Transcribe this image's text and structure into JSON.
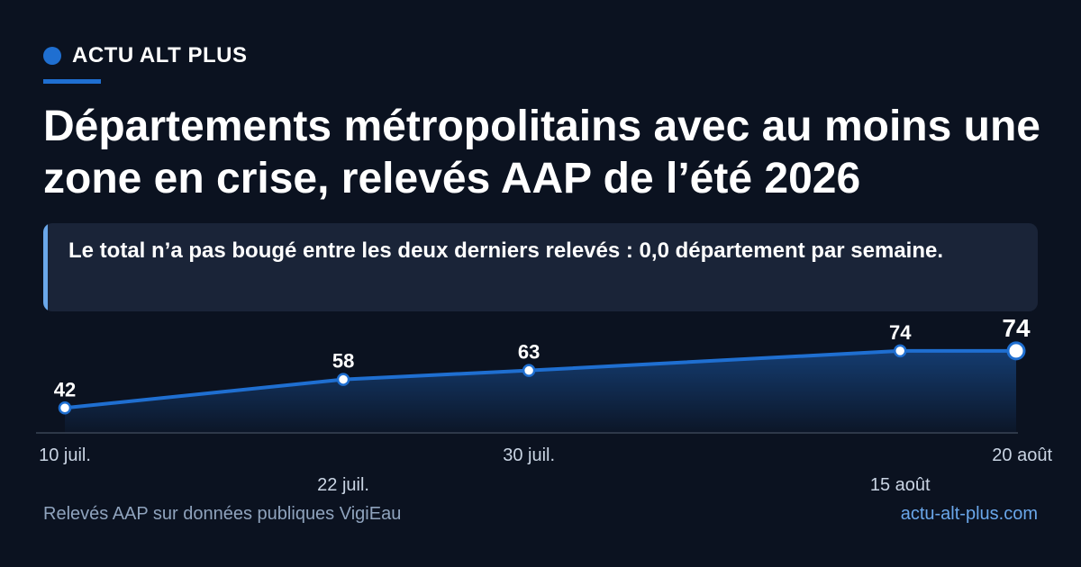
{
  "brand": {
    "name": "ACTU ALT PLUS",
    "accent": "#1f6fd1"
  },
  "headline": {
    "title": "Départements métropolitains avec au moins une zone en crise, relevés AAP de l’été 2026"
  },
  "callout": {
    "text": "Le total n’a pas bougé entre les deux derniers relevés : 0,0 département par semaine."
  },
  "footer": {
    "source": "Relevés AAP sur données publiques VigiEau",
    "site": "actu-alt-plus.com"
  },
  "colors": {
    "background": "#0b1220",
    "line": "#1f6fd1",
    "callout_bg": "#1a2438",
    "callout_bar": "#6aa7ea",
    "muted_text": "#8fa3bd"
  },
  "chart_data": {
    "type": "line",
    "categories": [
      "10 juil.",
      "22 juil.",
      "30 juil.",
      "15 août",
      "20 août"
    ],
    "series": [
      {
        "values": [
          42,
          58,
          63,
          74,
          74
        ]
      }
    ],
    "data_labels": [
      "42",
      "58",
      "63",
      "74",
      "74"
    ],
    "ylim": [
      28,
      80
    ],
    "grid": false,
    "area_fill": true,
    "last_point_highlighted": true
  }
}
